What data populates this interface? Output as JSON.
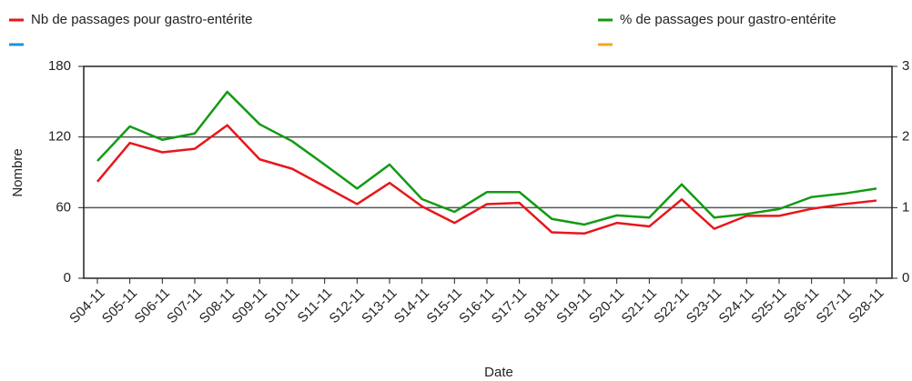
{
  "chart_data": {
    "type": "line",
    "xlabel": "Date",
    "ylabel": "Nombre",
    "categories": [
      "S04-11",
      "S05-11",
      "S06-11",
      "S07-11",
      "S08-11",
      "S09-11",
      "S10-11",
      "S11-11",
      "S12-11",
      "S13-11",
      "S14-11",
      "S15-11",
      "S16-11",
      "S17-11",
      "S18-11",
      "S19-11",
      "S20-11",
      "S21-11",
      "S22-11",
      "S23-11",
      "S24-11",
      "S25-11",
      "S26-11",
      "S27-11",
      "S28-11"
    ],
    "series": [
      {
        "name": "Nb de passages pour gastro-entérite",
        "color": "#e8161b",
        "axis": "y",
        "values": [
          82,
          115,
          107,
          110,
          130,
          101,
          93,
          78,
          63,
          81,
          61,
          47,
          63,
          64,
          39,
          38,
          47,
          44,
          67,
          42,
          53,
          53,
          59,
          63,
          66
        ]
      },
      {
        "name": "% de passages pour gastro-entérite",
        "color": "#139a13",
        "axis": "y2",
        "values": [
          1.66,
          2.15,
          1.96,
          2.05,
          2.64,
          2.18,
          1.94,
          1.61,
          1.27,
          1.61,
          1.12,
          0.94,
          1.22,
          1.22,
          0.84,
          0.76,
          0.89,
          0.86,
          1.33,
          0.86,
          0.91,
          0.98,
          1.15,
          1.2,
          1.27
        ]
      }
    ],
    "ylim": [
      0,
      180
    ],
    "yticks": [
      0,
      60,
      120,
      180
    ],
    "y2lim": [
      0,
      3
    ],
    "y2ticks": [
      0,
      1,
      2,
      3
    ],
    "grid": true
  }
}
